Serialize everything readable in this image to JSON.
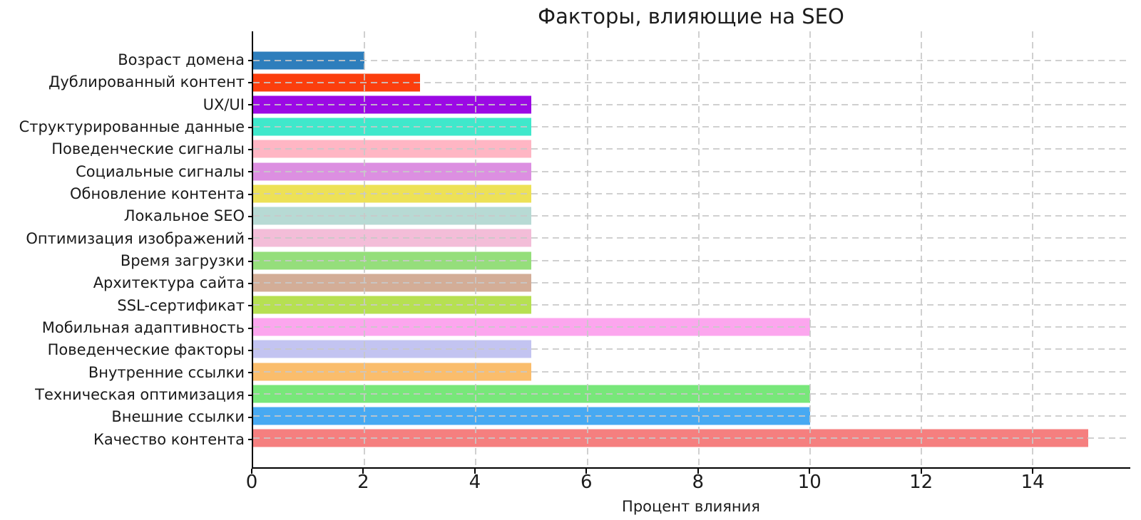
{
  "figure": {
    "background": "#ffffff",
    "text_color": "#1c1c1c",
    "spine_color": "#000000",
    "grid_color": "#c8c8c8"
  },
  "chart_data": {
    "type": "bar",
    "orientation": "horizontal",
    "title": "Факторы, влияющие на SEO",
    "xlabel": "Процент влияния",
    "ylabel": "",
    "categories": [
      "Возраст домена",
      "Дублированный контент",
      "UX/UI",
      "Структурированные данные",
      "Поведенческие сигналы",
      "Социальные сигналы",
      "Обновление контента",
      "Локальное SEO",
      "Оптимизация изображений",
      "Время загрузки",
      "Архитектура сайта",
      "SSL-сертификат",
      "Мобильная адаптивность",
      "Поведенческие факторы",
      "Внутренние ссылки",
      "Техническая оптимизация",
      "Внешние ссылки",
      "Качество контента"
    ],
    "values": [
      2,
      3,
      5,
      5,
      5,
      5,
      5,
      5,
      5,
      5,
      5,
      5,
      10,
      5,
      5,
      10,
      10,
      15
    ],
    "colors": [
      "#2e7ebc",
      "#fb3e0d",
      "#9b09e4",
      "#3fe8cb",
      "#ffb6c4",
      "#dc8fe1",
      "#ede156",
      "#b7dad4",
      "#f3bdd8",
      "#95de7b",
      "#d3ad97",
      "#b6e052",
      "#fca6ee",
      "#c3c4f1",
      "#fabd6c",
      "#78e77a",
      "#47a9f2",
      "#f57f7f"
    ],
    "xticks": [
      0,
      2,
      4,
      6,
      8,
      10,
      12,
      14
    ],
    "xlim": [
      0,
      15.75
    ],
    "grid": {
      "style": "dashed",
      "axes": "both",
      "on_top_of_bars": true
    },
    "legend": null
  }
}
